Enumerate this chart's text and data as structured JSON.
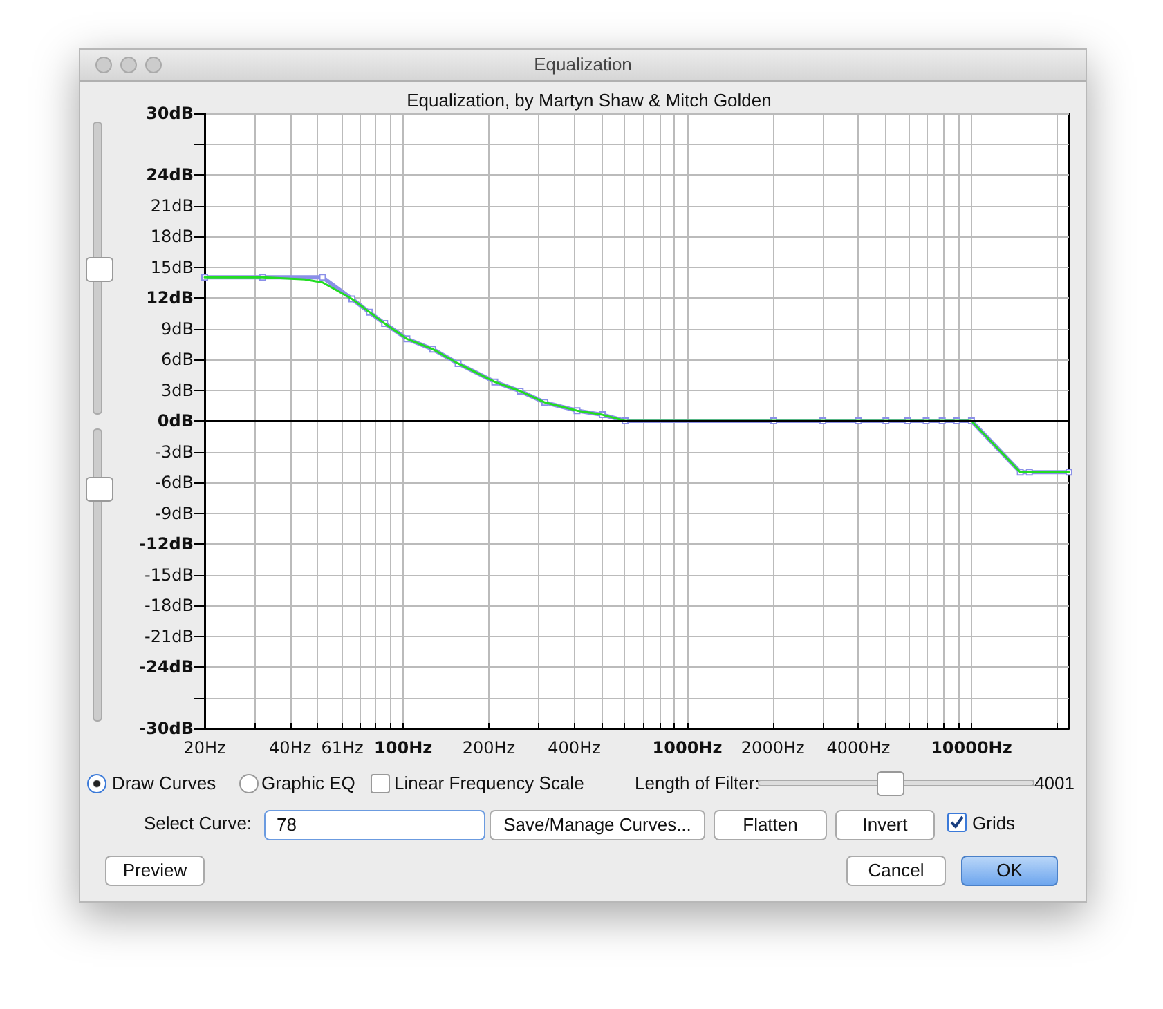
{
  "chart_data": {
    "type": "line",
    "title": "Equalization",
    "subtitle": "Equalization, by Martyn Shaw & Mitch Golden",
    "log": "x",
    "grid": true,
    "marker": "square",
    "line_style": "solid",
    "xlim": [
      20,
      22050
    ],
    "ylim": [
      -30,
      30
    ],
    "xticks": [
      {
        "value": 20,
        "label": "20Hz"
      },
      {
        "value": 30,
        "label": null
      },
      {
        "value": 40,
        "label": "40Hz"
      },
      {
        "value": 50,
        "label": null
      },
      {
        "value": 61,
        "label": "61Hz"
      },
      {
        "value": 70,
        "label": null
      },
      {
        "value": 80,
        "label": null
      },
      {
        "value": 90,
        "label": null
      },
      {
        "value": 100,
        "label": "100Hz"
      },
      {
        "value": 200,
        "label": "200Hz"
      },
      {
        "value": 300,
        "label": null
      },
      {
        "value": 400,
        "label": "400Hz"
      },
      {
        "value": 500,
        "label": null
      },
      {
        "value": 600,
        "label": null
      },
      {
        "value": 700,
        "label": null
      },
      {
        "value": 800,
        "label": null
      },
      {
        "value": 900,
        "label": null
      },
      {
        "value": 1000,
        "label": "1000Hz"
      },
      {
        "value": 2000,
        "label": "2000Hz"
      },
      {
        "value": 3000,
        "label": null
      },
      {
        "value": 4000,
        "label": "4000Hz"
      },
      {
        "value": 5000,
        "label": null
      },
      {
        "value": 6000,
        "label": null
      },
      {
        "value": 7000,
        "label": null
      },
      {
        "value": 8000,
        "label": null
      },
      {
        "value": 9000,
        "label": null
      },
      {
        "value": 10000,
        "label": "10000Hz"
      },
      {
        "value": 20000,
        "label": null
      }
    ],
    "yticks": [
      {
        "value": 30,
        "label": "30dB"
      },
      {
        "value": 27,
        "label": null
      },
      {
        "value": 24,
        "label": "24dB"
      },
      {
        "value": 21,
        "label": "21dB"
      },
      {
        "value": 18,
        "label": "18dB"
      },
      {
        "value": 15,
        "label": "15dB"
      },
      {
        "value": 12,
        "label": "12dB"
      },
      {
        "value": 9,
        "label": "9dB"
      },
      {
        "value": 6,
        "label": "6dB"
      },
      {
        "value": 3,
        "label": "3dB"
      },
      {
        "value": 0,
        "label": "0dB"
      },
      {
        "value": -3,
        "label": "-3dB"
      },
      {
        "value": -6,
        "label": "-6dB"
      },
      {
        "value": -9,
        "label": "-9dB"
      },
      {
        "value": -12,
        "label": "-12dB"
      },
      {
        "value": -15,
        "label": "-15dB"
      },
      {
        "value": -18,
        "label": "-18dB"
      },
      {
        "value": -21,
        "label": "-21dB"
      },
      {
        "value": -24,
        "label": "-24dB"
      },
      {
        "value": -27,
        "label": null
      },
      {
        "value": -30,
        "label": "-30dB"
      }
    ],
    "series": [
      {
        "color": "#22dd22",
        "marker": "none",
        "x": [
          20,
          32,
          45,
          52,
          66,
          86,
          103,
          127,
          156,
          210,
          258,
          315,
          409,
          502,
          604,
          2000,
          10000,
          14860,
          16000,
          22050
        ],
        "values": [
          14,
          14,
          13.8,
          13.5,
          11.9,
          9.5,
          8,
          7,
          5.6,
          3.8,
          2.9,
          1.8,
          1,
          0.6,
          0,
          0,
          0,
          -5,
          -5,
          -5
        ]
      },
      {
        "color": "#8a8fe8",
        "x": [
          20,
          32,
          52,
          66,
          76,
          86,
          103,
          127,
          156,
          210,
          258,
          315,
          409,
          502,
          604,
          2014,
          3000,
          4000,
          5000,
          5970,
          6930,
          7890,
          8880,
          10000,
          14860,
          16000,
          22050
        ],
        "values": [
          14,
          14,
          14,
          11.9,
          10.6,
          9.5,
          8,
          7,
          5.6,
          3.8,
          2.9,
          1.8,
          1,
          0.6,
          0,
          0,
          0,
          0,
          0,
          0,
          0,
          0,
          0,
          0,
          -5,
          -5,
          -5
        ]
      }
    ],
    "annotations": [
      "Draw Curves",
      "Graphic EQ",
      "Linear Frequency Scale",
      "Length of Filter:",
      "4001",
      "Select Curve:",
      "78",
      "Save/Manage Curves...",
      "Flatten",
      "Invert",
      "Grids",
      "Preview",
      "Cancel",
      "OK"
    ]
  }
}
